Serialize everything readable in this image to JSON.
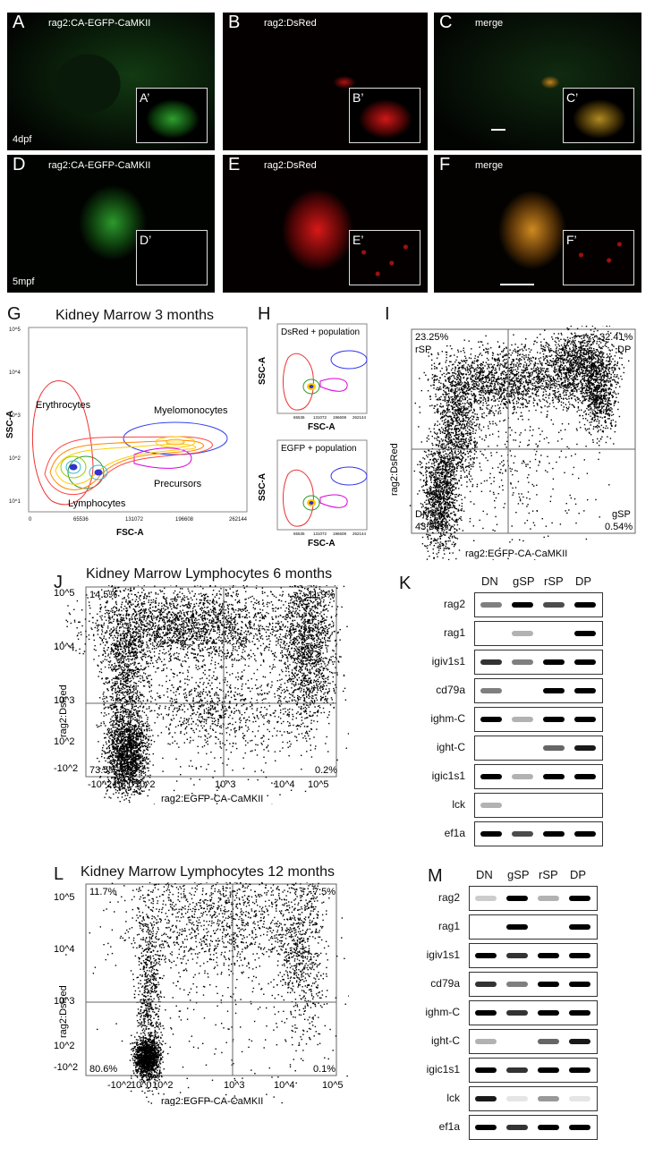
{
  "panels": {
    "A": {
      "letter": "A",
      "title": "rag2:CA-EGFP-CaMKII",
      "inset": "A’",
      "age": "4dpf"
    },
    "B": {
      "letter": "B",
      "title": "rag2:DsRed",
      "inset": "B’"
    },
    "C": {
      "letter": "C",
      "title": "merge",
      "inset": "C’"
    },
    "D": {
      "letter": "D",
      "title": "rag2:CA-EGFP-CaMKII",
      "inset": "D’",
      "age": "5mpf"
    },
    "E": {
      "letter": "E",
      "title": "rag2:DsRed",
      "inset": "E’"
    },
    "F": {
      "letter": "F",
      "title": "merge",
      "inset": "F’"
    }
  },
  "G": {
    "letter": "G",
    "title": "Kidney Marrow 3 months",
    "ylabel": "SSC-A",
    "xlabel": "FSC-A",
    "xticks": [
      "0",
      "65536",
      "131072",
      "196608",
      "262144"
    ],
    "yticks": [
      "10^5",
      "10^4",
      "10^3",
      "10^2",
      "10^1"
    ],
    "gates": [
      "Erythrocytes",
      "Myelomonocytes",
      "Precursors",
      "Lymphocytes"
    ]
  },
  "H": {
    "letter": "H",
    "top": "DsRed + population",
    "bottom": "EGFP + population",
    "ylabel": "SSC-A",
    "xlabel": "FSC-A",
    "xticks": [
      "0",
      "65536",
      "131072",
      "196608",
      "262144"
    ]
  },
  "I": {
    "letter": "I",
    "ylabel": "rag2:DsRed",
    "xlabel": "rag2:EGFP-CA-CaMKII",
    "q_tl": "23.25%",
    "q_tl2": "rSP",
    "q_tr": "32.41%",
    "q_tr2": "DP",
    "q_bl": "DN",
    "q_bl2": "43.80%",
    "q_br": "gSP",
    "q_br2": "0.54%"
  },
  "J": {
    "letter": "J",
    "title": "Kidney Marrow Lymphocytes 6 months",
    "ylabel": "rag2:DsRed",
    "xlabel": "rag2:EGFP-CA-CaMKII",
    "q_tl": "14.5%",
    "q_tr": "11.9%",
    "q_bl": "73.5%",
    "q_br": "0.2%"
  },
  "L": {
    "letter": "L",
    "title": "Kidney Marrow Lymphocytes 12 months",
    "ylabel": "rag2:DsRed",
    "xlabel": "rag2:EGFP-CA-CaMKII",
    "q_tl": "11.7%",
    "q_tr": "7.5%",
    "q_bl": "80.6%",
    "q_br": "0.1%"
  },
  "flow_ticks": {
    "x": [
      "-10^2",
      "10^0",
      "10^2",
      "10^3",
      "10^4",
      "10^5"
    ],
    "y": [
      "10^5",
      "10^4",
      "10^3",
      "10^2",
      "-10^2"
    ]
  },
  "K": {
    "letter": "K",
    "lanes": [
      "DN",
      "gSP",
      "rSP",
      "DP"
    ],
    "genes": [
      "rag2",
      "rag1",
      "igiv1s1",
      "cd79a",
      "ighm-C",
      "ight-C",
      "igic1s1",
      "lck",
      "ef1a"
    ],
    "bands": [
      [
        0.5,
        1,
        0.7,
        1
      ],
      [
        0,
        0.3,
        0,
        1
      ],
      [
        0.8,
        0.5,
        1,
        1
      ],
      [
        0.5,
        0,
        1,
        1
      ],
      [
        1,
        0.3,
        1,
        1
      ],
      [
        0,
        0,
        0.6,
        0.9
      ],
      [
        1,
        0.3,
        1,
        1
      ],
      [
        0.3,
        0,
        0,
        0
      ],
      [
        1,
        0.7,
        1,
        1
      ]
    ]
  },
  "M": {
    "letter": "M",
    "lanes": [
      "DN",
      "gSP",
      "rSP",
      "DP"
    ],
    "genes": [
      "rag2",
      "rag1",
      "igiv1s1",
      "cd79a",
      "ighm-C",
      "ight-C",
      "igic1s1",
      "lck",
      "ef1a"
    ],
    "bands": [
      [
        0.2,
        1,
        0.3,
        1
      ],
      [
        0,
        1,
        0,
        1
      ],
      [
        1,
        0.8,
        1,
        1
      ],
      [
        0.8,
        0.5,
        1,
        1
      ],
      [
        1,
        0.8,
        1,
        1
      ],
      [
        0.3,
        0,
        0.6,
        0.9
      ],
      [
        1,
        0.8,
        1,
        1
      ],
      [
        0.9,
        0.1,
        0.4,
        0.1
      ],
      [
        1,
        0.8,
        1,
        1
      ]
    ]
  }
}
